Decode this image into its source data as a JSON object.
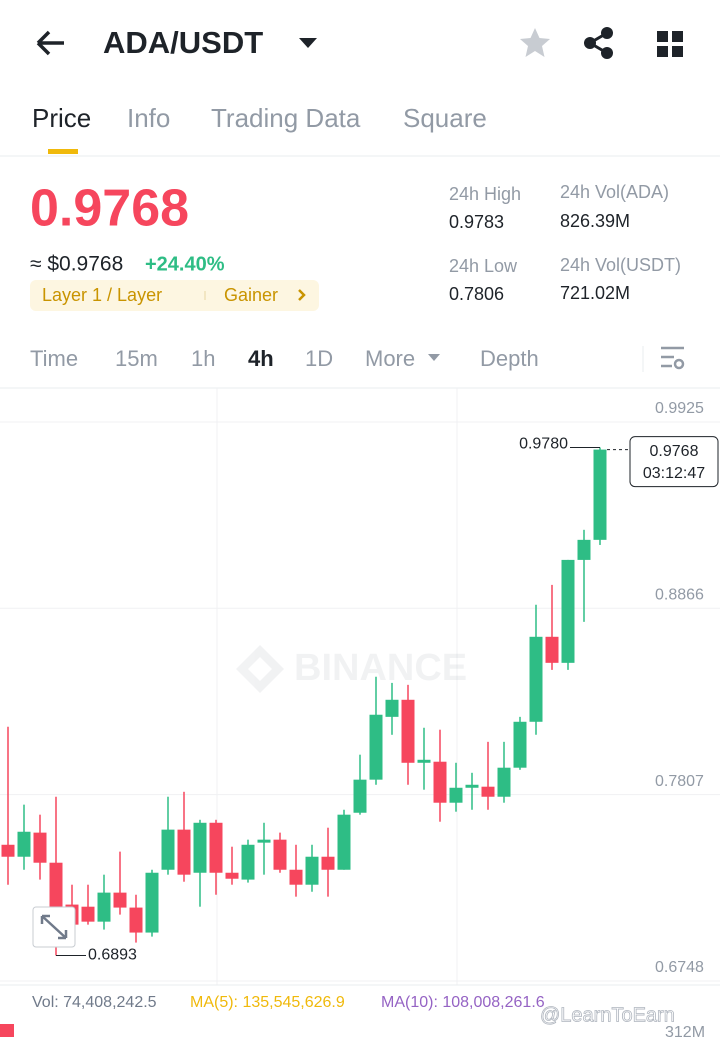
{
  "header": {
    "pair": "ADA/USDT"
  },
  "tabs": [
    "Price",
    "Info",
    "Trading Data",
    "Square"
  ],
  "ticker": {
    "price": "0.9768",
    "usd": "≈ $0.9768",
    "change": "+24.40%",
    "tags": [
      "Layer 1 / Layer",
      "Gainer"
    ],
    "stats": [
      {
        "label": "24h High",
        "value": "0.9783"
      },
      {
        "label": "24h Vol(ADA)",
        "value": "826.39M"
      },
      {
        "label": "24h Low",
        "value": "0.7806"
      },
      {
        "label": "24h Vol(USDT)",
        "value": "721.02M"
      }
    ]
  },
  "intervals": [
    "Time",
    "15m",
    "1h",
    "4h",
    "1D",
    "More",
    "Depth"
  ],
  "chart_data": {
    "type": "candlestick",
    "watermark": "BINANCE",
    "ylim": [
      0.6725,
      1.0118
    ],
    "yticks": [
      0.9925,
      0.8866,
      0.7807,
      0.6748
    ],
    "grid": true,
    "up_color": "#2ebd85",
    "down_color": "#f6465d",
    "open": [
      0.7522,
      0.7454,
      0.7591,
      0.742,
      0.7182,
      0.717,
      0.7085,
      0.725,
      0.7165,
      0.7023,
      0.738,
      0.7608,
      0.7363,
      0.7647,
      0.7363,
      0.7324,
      0.7534,
      0.7551,
      0.738,
      0.7295,
      0.7454,
      0.738,
      0.7704,
      0.7892,
      0.8249,
      0.8346,
      0.7988,
      0.7994,
      0.7761,
      0.7846,
      0.7852,
      0.7795,
      0.796,
      0.8221,
      0.8704,
      0.8556,
      0.9141,
      0.9255
    ],
    "high": [
      0.8193,
      0.775,
      0.7693,
      0.7795,
      0.7295,
      0.7295,
      0.7352,
      0.7483,
      0.7238,
      0.738,
      0.7795,
      0.7823,
      0.7664,
      0.7664,
      0.7511,
      0.7551,
      0.7647,
      0.7591,
      0.7522,
      0.7522,
      0.7619,
      0.7721,
      0.8034,
      0.8477,
      0.8442,
      0.8431,
      0.8187,
      0.8176,
      0.7988,
      0.7931,
      0.8107,
      0.8107,
      0.8249,
      0.8886,
      0.8999,
      0.9141,
      0.9312,
      0.978
    ],
    "low": [
      0.7295,
      0.738,
      0.7324,
      0.6893,
      0.6983,
      0.7068,
      0.704,
      0.7125,
      0.6966,
      0.7,
      0.7352,
      0.7312,
      0.717,
      0.7238,
      0.7295,
      0.7307,
      0.7352,
      0.7363,
      0.7227,
      0.7255,
      0.7227,
      0.738,
      0.7693,
      0.7863,
      0.8147,
      0.7863,
      0.7835,
      0.7653,
      0.771,
      0.7721,
      0.7721,
      0.7761,
      0.7948,
      0.8147,
      0.8516,
      0.8516,
      0.8789,
      0.9226
    ],
    "close": [
      0.7454,
      0.7596,
      0.742,
      0.717,
      0.7068,
      0.7085,
      0.725,
      0.7165,
      0.7023,
      0.7363,
      0.7608,
      0.7352,
      0.7647,
      0.7363,
      0.7329,
      0.7522,
      0.7551,
      0.738,
      0.7295,
      0.7454,
      0.738,
      0.7693,
      0.7892,
      0.8261,
      0.8346,
      0.7988,
      0.8005,
      0.7761,
      0.7846,
      0.7863,
      0.7795,
      0.796,
      0.8221,
      0.8704,
      0.8556,
      0.9141,
      0.9255,
      0.9768
    ],
    "annotations": [
      {
        "value": 0.978,
        "label": "0.9780"
      },
      {
        "value": 0.6893,
        "label": "0.6893"
      }
    ],
    "last": {
      "value": 0.9768,
      "label": "0.9768",
      "countdown": "03:12:47"
    }
  },
  "indicators": [
    "Vol: 74,408,242.5",
    "MA(5): 135,545,626.9",
    "MA(10): 108,008,261.6"
  ],
  "volume_axis_label": "312M",
  "credit": "@LearnToEarn"
}
